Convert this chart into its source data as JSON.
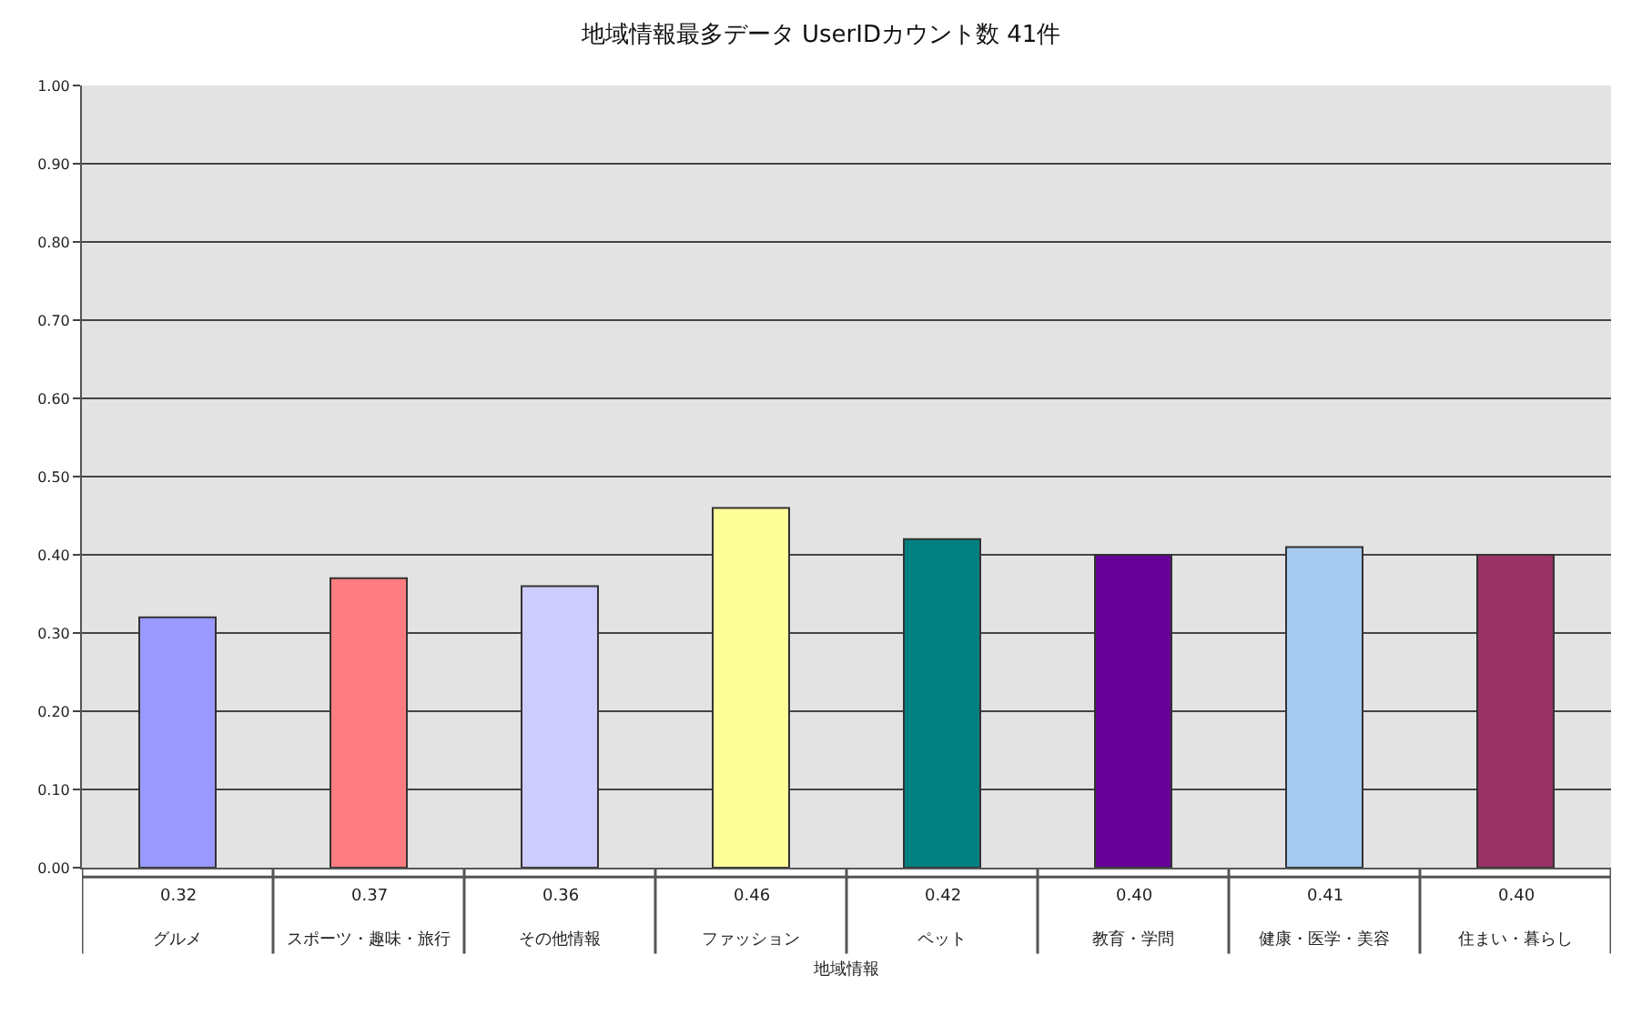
{
  "chart_data": {
    "type": "bar",
    "title": "地域情報最多データ UserIDカウント数 41件",
    "xlabel": "地域情報",
    "categories": [
      "グルメ",
      "スポーツ・趣味・旅行",
      "その他情報",
      "ファッション",
      "ペット",
      "教育・学問",
      "健康・医学・美容",
      "住まい・暮らし"
    ],
    "values": [
      0.32,
      0.37,
      0.36,
      0.46,
      0.42,
      0.4,
      0.41,
      0.4
    ],
    "value_labels": [
      "0.32",
      "0.37",
      "0.36",
      "0.46",
      "0.42",
      "0.40",
      "0.41",
      "0.40"
    ],
    "colors": [
      "#9999ff",
      "#ff7c80",
      "#ccccff",
      "#ffff99",
      "#008080",
      "#660099",
      "#a6caf0",
      "#993366"
    ],
    "ylim": [
      0,
      1
    ],
    "yticks": [
      {
        "value": 0,
        "label": "0.00"
      },
      {
        "value": 0.1,
        "label": "0.10"
      },
      {
        "value": 0.2,
        "label": "0.20"
      },
      {
        "value": 0.3,
        "label": "0.30"
      },
      {
        "value": 0.4,
        "label": "0.40"
      },
      {
        "value": 0.5,
        "label": "0.50"
      },
      {
        "value": 0.6,
        "label": "0.60"
      },
      {
        "value": 0.7,
        "label": "0.70"
      },
      {
        "value": 0.8,
        "label": "0.80"
      },
      {
        "value": 0.9,
        "label": "0.90"
      },
      {
        "value": 1,
        "label": "1.00"
      }
    ],
    "grid": "y",
    "legend": false
  }
}
